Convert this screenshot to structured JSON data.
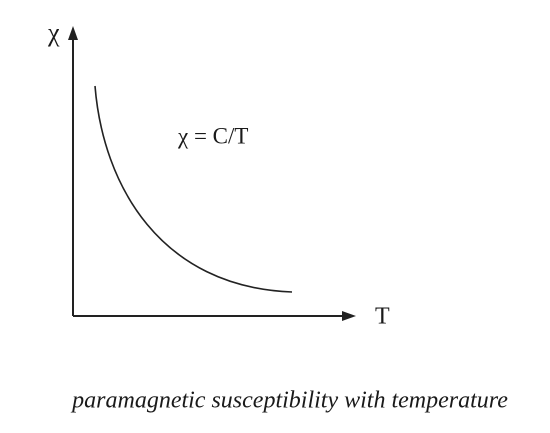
{
  "axes": {
    "y_label": "χ",
    "x_label": "T"
  },
  "annotation": "χ = C/T",
  "caption": "paramagnetic susceptibility with temperature"
}
